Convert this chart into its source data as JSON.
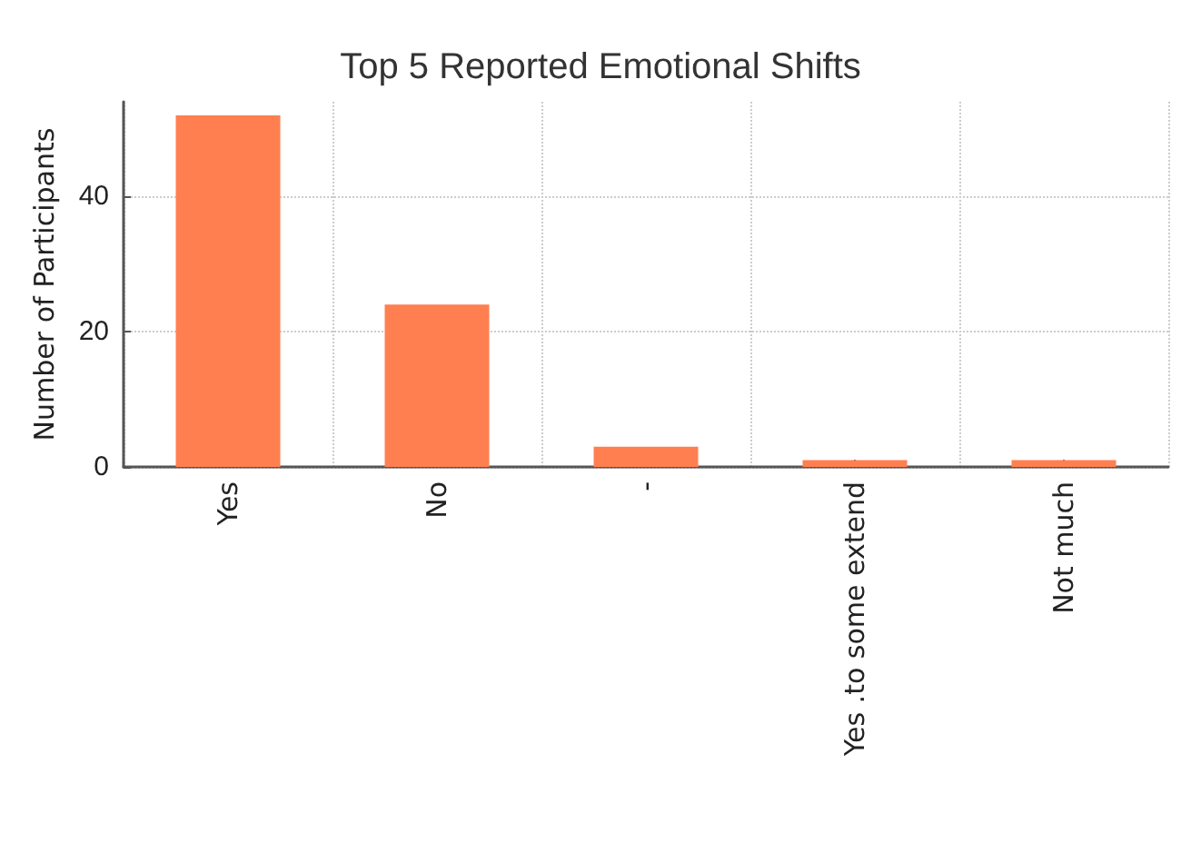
{
  "chart_data": {
    "type": "bar",
    "title": "Top 5 Reported Emotional Shifts",
    "ylabel": "Number of Participants",
    "categories": [
      "Yes",
      "No",
      "-",
      "Yes .to some extend",
      "Not much"
    ],
    "values": [
      52,
      24,
      3,
      1,
      1
    ],
    "color": "#ff7f50",
    "ylim": [
      0,
      54
    ],
    "yticks": [
      0,
      20,
      40
    ],
    "grid": true
  }
}
